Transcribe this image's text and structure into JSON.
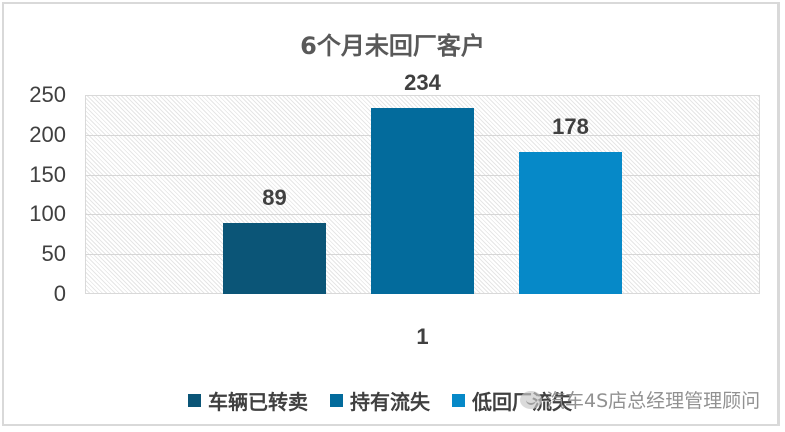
{
  "chart_data": {
    "type": "bar",
    "title": "6个月未回厂客户",
    "categories": [
      "1"
    ],
    "series": [
      {
        "name": "车辆已转卖",
        "values": [
          89
        ],
        "color": "#0b5577"
      },
      {
        "name": "持有流失",
        "values": [
          234
        ],
        "color": "#036b9c"
      },
      {
        "name": "低回厂流失",
        "values": [
          178
        ],
        "color": "#0689c8"
      }
    ],
    "xlabel": "",
    "ylabel": "",
    "ylim": [
      0,
      250
    ],
    "yticks": [
      "0",
      "50",
      "100",
      "150",
      "200",
      "250"
    ],
    "grid": true,
    "legend_position": "bottom",
    "data_labels": [
      "89",
      "234",
      "178"
    ]
  },
  "watermark": {
    "text": "汽车4S店总经理管理顾问",
    "icon": "wechat-icon"
  }
}
